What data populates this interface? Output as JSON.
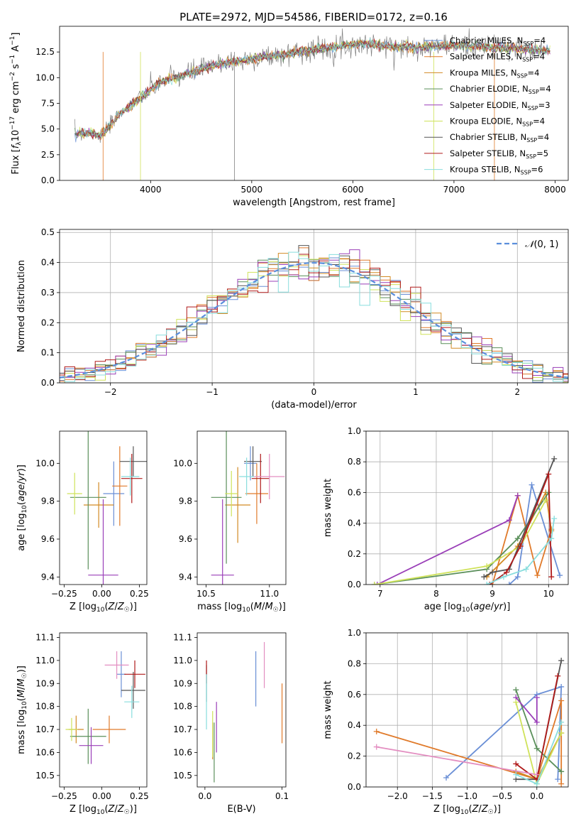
{
  "title": "PLATE=2972, MJD=54586, FIBERID=0172, z=0.16",
  "colors": [
    "#6a8fd6",
    "#e07a2a",
    "#d28a24",
    "#5a8f5a",
    "#9a3fb8",
    "#cfe25a",
    "#555555",
    "#b01a1a",
    "#88dddd"
  ],
  "chart_data": [
    {
      "id": "spectrum",
      "type": "line",
      "xlabel": "wavelength [Angstrom, rest frame]",
      "ylabel": "Flux [f_λ10^-17 erg cm^-2 s^-1 A^-1]",
      "xlim": [
        3100,
        8130
      ],
      "ylim": [
        0,
        15
      ],
      "xticks": [
        4000,
        5000,
        6000,
        7000,
        8000
      ],
      "yticks": [
        0.0,
        2.5,
        5.0,
        7.5,
        10.0,
        12.5
      ],
      "grid": false,
      "legend_placement": "upper-right",
      "legend": [
        "Chabrier MILES, N_SSP=4",
        "Salpeter MILES, N_SSP=4",
        "Kroupa MILES, N_SSP=4",
        "Chabrier ELODIE, N_SSP=4",
        "Salpeter ELODIE, N_SSP=3",
        "Kroupa ELODIE, N_SSP=4",
        "Chabrier STELIB, N_SSP=4",
        "Salpeter STELIB, N_SSP=5",
        "Kroupa STELIB, N_SSP=6"
      ],
      "data_curve": {
        "x": [
          3250,
          3400,
          3500,
          3600,
          3700,
          3800,
          3900,
          4000,
          4100,
          4200,
          4300,
          4500,
          4700,
          4900,
          5100,
          5300,
          5500,
          5700,
          5900,
          6100,
          6300,
          6500,
          6700,
          6900,
          7100,
          7300,
          7500,
          7700,
          7900
        ],
        "y": [
          4.6,
          4.6,
          4.3,
          5.3,
          6.6,
          7.2,
          8.0,
          8.8,
          9.6,
          9.9,
          10.2,
          10.8,
          11.4,
          11.6,
          12.0,
          12.2,
          12.6,
          12.8,
          13.1,
          13.3,
          13.1,
          13.0,
          13.0,
          13.1,
          13.1,
          13.0,
          12.9,
          12.8,
          12.6
        ]
      }
    },
    {
      "id": "residuals",
      "type": "histogram",
      "xlabel": "(data-model)/error",
      "ylabel": "Normed distribution",
      "xlim": [
        -2.5,
        2.5
      ],
      "ylim": [
        0,
        0.51
      ],
      "xticks": [
        -2,
        -1,
        0,
        1,
        2
      ],
      "yticks": [
        0.0,
        0.1,
        0.2,
        0.3,
        0.4,
        0.5
      ],
      "grid": true,
      "legend_placement": "upper-right",
      "legend": [
        "N(0,1)"
      ],
      "bin_width": 0.1,
      "gaussian": {
        "mu": 0,
        "sigma": 1
      }
    },
    {
      "id": "age_vs_Z",
      "type": "scatter",
      "xlabel": "Z [log10(Z/Z_sun)]",
      "ylabel": "age [log10(age/yr)]",
      "xlim": [
        -0.28,
        0.3
      ],
      "ylim": [
        9.36,
        10.17
      ],
      "xticks": [
        -0.25,
        0.0,
        0.25
      ],
      "yticks": [
        9.4,
        9.6,
        9.8,
        10.0
      ],
      "points": [
        {
          "x": 0.08,
          "y": 9.84,
          "xerr": 0.07,
          "yerr": 0.17
        },
        {
          "x": 0.12,
          "y": 9.88,
          "xerr": 0.05,
          "yerr": 0.21
        },
        {
          "x": -0.02,
          "y": 9.78,
          "xerr": 0.1,
          "yerr": 0.12
        },
        {
          "x": -0.09,
          "y": 9.82,
          "xerr": 0.12,
          "yerr": 0.38
        },
        {
          "x": 0.01,
          "y": 9.41,
          "xerr": 0.1,
          "yerr": 0.4
        },
        {
          "x": -0.18,
          "y": 9.84,
          "xerr": 0.05,
          "yerr": 0.11
        },
        {
          "x": 0.21,
          "y": 10.01,
          "xerr": 0.09,
          "yerr": 0.08
        },
        {
          "x": 0.2,
          "y": 9.92,
          "xerr": 0.07,
          "yerr": 0.13
        },
        {
          "x": 0.19,
          "y": 9.93,
          "xerr": 0.06,
          "yerr": 0.1
        }
      ]
    },
    {
      "id": "age_vs_mass",
      "type": "scatter",
      "xlabel": "mass [log10(M/M_sun)]",
      "ylabel": "",
      "xlim": [
        10.43,
        11.13
      ],
      "ylim": [
        9.36,
        10.17
      ],
      "xticks": [
        10.5,
        11.0
      ],
      "yticks": [
        9.4,
        9.6,
        9.8,
        10.0
      ],
      "points": [
        {
          "x": 10.85,
          "y": 10.0,
          "xerr": 0.05,
          "yerr": 0.09
        },
        {
          "x": 10.9,
          "y": 9.84,
          "xerr": 0.09,
          "yerr": 0.16
        },
        {
          "x": 10.75,
          "y": 9.78,
          "xerr": 0.1,
          "yerr": 0.2
        },
        {
          "x": 10.66,
          "y": 9.82,
          "xerr": 0.12,
          "yerr": 0.35
        },
        {
          "x": 10.63,
          "y": 9.41,
          "xerr": 0.09,
          "yerr": 0.4
        },
        {
          "x": 10.7,
          "y": 9.84,
          "xerr": 0.05,
          "yerr": 0.12
        },
        {
          "x": 10.87,
          "y": 10.01,
          "xerr": 0.07,
          "yerr": 0.08
        },
        {
          "x": 10.93,
          "y": 9.92,
          "xerr": 0.07,
          "yerr": 0.13
        },
        {
          "x": 10.82,
          "y": 9.93,
          "xerr": 0.06,
          "yerr": 0.1
        },
        {
          "x": 11.0,
          "y": 9.93,
          "xerr": 0.12,
          "yerr": 0.12
        }
      ]
    },
    {
      "id": "weight_vs_age",
      "type": "line",
      "xlabel": "age [log10(age/yr)]",
      "ylabel": "mass weight",
      "xlim": [
        6.75,
        10.35
      ],
      "ylim": [
        0,
        1.0
      ],
      "xticks": [
        7,
        8,
        9,
        10
      ],
      "yticks": [
        0.0,
        0.2,
        0.4,
        0.6,
        0.8,
        1.0
      ],
      "grid": true,
      "series": [
        {
          "x": [
            9.3,
            9.45,
            9.7,
            10.2
          ],
          "y": [
            0.0,
            0.05,
            0.65,
            0.06
          ]
        },
        {
          "x": [
            9.0,
            9.45,
            9.8,
            10.05
          ],
          "y": [
            0.0,
            0.58,
            0.06,
            0.36
          ]
        },
        {
          "x": [
            8.9,
            9.45,
            9.95,
            10.05
          ],
          "y": [
            0.05,
            0.25,
            0.6,
            0.35
          ]
        },
        {
          "x": [
            6.9,
            8.9,
            9.45,
            10.0
          ],
          "y": [
            0.0,
            0.1,
            0.3,
            0.6
          ]
        },
        {
          "x": [
            6.95,
            9.3,
            9.45
          ],
          "y": [
            0.0,
            0.42,
            0.58
          ]
        },
        {
          "x": [
            6.9,
            8.9,
            9.5,
            9.95
          ],
          "y": [
            0.0,
            0.12,
            0.25,
            0.55
          ]
        },
        {
          "x": [
            8.85,
            9.0,
            9.3,
            10.1
          ],
          "y": [
            0.05,
            0.08,
            0.1,
            0.82
          ]
        },
        {
          "x": [
            8.95,
            9.25,
            9.5,
            10.0,
            10.05
          ],
          "y": [
            0.0,
            0.08,
            0.25,
            0.72,
            0.05
          ]
        },
        {
          "x": [
            8.9,
            9.2,
            9.6,
            10.05,
            10.1
          ],
          "y": [
            0.0,
            0.05,
            0.1,
            0.3,
            0.43
          ]
        }
      ]
    },
    {
      "id": "mass_vs_Z",
      "type": "scatter",
      "xlabel": "Z [log10(Z/Z_sun)]",
      "ylabel": "mass [log10(M/M_sun)]",
      "xlim": [
        -0.28,
        0.3
      ],
      "ylim": [
        10.45,
        11.12
      ],
      "xticks": [
        -0.25,
        0.0,
        0.25
      ],
      "yticks": [
        10.5,
        10.6,
        10.7,
        10.8,
        10.9,
        11.0,
        11.1
      ],
      "points": [
        {
          "x": 0.13,
          "y": 10.94,
          "xerr": 0.03,
          "yerr": 0.1
        },
        {
          "x": 0.05,
          "y": 10.7,
          "xerr": 0.11,
          "yerr": 0.06
        },
        {
          "x": -0.17,
          "y": 10.7,
          "xerr": 0.05,
          "yerr": 0.06
        },
        {
          "x": -0.09,
          "y": 10.67,
          "xerr": 0.12,
          "yerr": 0.12
        },
        {
          "x": -0.07,
          "y": 10.63,
          "xerr": 0.08,
          "yerr": 0.08
        },
        {
          "x": -0.2,
          "y": 10.7,
          "xerr": 0.04,
          "yerr": 0.05
        },
        {
          "x": 0.21,
          "y": 10.87,
          "xerr": 0.08,
          "yerr": 0.08
        },
        {
          "x": 0.22,
          "y": 10.94,
          "xerr": 0.07,
          "yerr": 0.06
        },
        {
          "x": 0.2,
          "y": 10.82,
          "xerr": 0.05,
          "yerr": 0.07
        },
        {
          "x": 0.1,
          "y": 10.98,
          "xerr": 0.08,
          "yerr": 0.06
        }
      ]
    },
    {
      "id": "mass_vs_ebv",
      "type": "scatter",
      "xlabel": "E(B-V)",
      "ylabel": "",
      "xlim": [
        -0.01,
        0.105
      ],
      "ylim": [
        10.45,
        11.12
      ],
      "xticks": [
        0.0,
        0.1
      ],
      "yticks": [
        10.5,
        10.6,
        10.7,
        10.8,
        10.9,
        11.0,
        11.1
      ],
      "points": [
        {
          "x": 0.066,
          "y": 10.92,
          "xerr": 0,
          "yerr": 0.12
        },
        {
          "x": 0.1,
          "y": 10.77,
          "xerr": 0,
          "yerr": 0.13
        },
        {
          "x": 0.01,
          "y": 10.65,
          "xerr": 0,
          "yerr": 0.08
        },
        {
          "x": 0.012,
          "y": 10.6,
          "xerr": 0,
          "yerr": 0.13
        },
        {
          "x": 0.015,
          "y": 10.71,
          "xerr": 0,
          "yerr": 0.11
        },
        {
          "x": 0.01,
          "y": 10.68,
          "xerr": 0,
          "yerr": 0.1
        },
        {
          "x": 0.002,
          "y": 10.9,
          "xerr": 0,
          "yerr": 0.08
        },
        {
          "x": 0.002,
          "y": 10.95,
          "xerr": 0,
          "yerr": 0.05
        },
        {
          "x": 0.002,
          "y": 10.82,
          "xerr": 0,
          "yerr": 0.12
        },
        {
          "x": 0.077,
          "y": 10.98,
          "xerr": 0,
          "yerr": 0.1
        }
      ]
    },
    {
      "id": "weight_vs_Z",
      "type": "line",
      "xlabel": "Z [log10(Z/Z_sun)]",
      "ylabel": "mass weight",
      "xlim": [
        -2.45,
        0.45
      ],
      "ylim": [
        0,
        1.0
      ],
      "xticks": [
        -2.0,
        -1.5,
        -1.0,
        -0.5,
        0.0
      ],
      "yticks": [
        0.0,
        0.2,
        0.4,
        0.6,
        0.8,
        1.0
      ],
      "grid": true,
      "series": [
        {
          "x": [
            -1.3,
            0.0,
            0.35,
            0.3
          ],
          "y": [
            0.06,
            0.6,
            0.65,
            0.05
          ]
        },
        {
          "x": [
            -2.3,
            0.0,
            0.35,
            0.35
          ],
          "y": [
            0.36,
            0.05,
            0.56,
            0.02
          ]
        },
        {
          "x": [
            -0.3,
            0.0,
            0.35
          ],
          "y": [
            0.1,
            0.05,
            0.35
          ]
        },
        {
          "x": [
            -0.3,
            0.0,
            0.35
          ],
          "y": [
            0.63,
            0.25,
            0.1
          ]
        },
        {
          "x": [
            -0.3,
            0.0,
            0.0
          ],
          "y": [
            0.58,
            0.42,
            0.58
          ]
        },
        {
          "x": [
            -0.3,
            0.0,
            0.35
          ],
          "y": [
            0.55,
            0.02,
            0.35
          ]
        },
        {
          "x": [
            -0.3,
            0.0,
            0.35
          ],
          "y": [
            0.05,
            0.05,
            0.82
          ]
        },
        {
          "x": [
            -0.3,
            0.0,
            0.3
          ],
          "y": [
            0.15,
            0.05,
            0.72
          ]
        },
        {
          "x": [
            -0.3,
            0.0,
            0.35
          ],
          "y": [
            0.08,
            0.02,
            0.42
          ]
        },
        {
          "x": [
            -2.3,
            0.0
          ],
          "y": [
            0.26,
            0.08
          ]
        }
      ]
    }
  ]
}
